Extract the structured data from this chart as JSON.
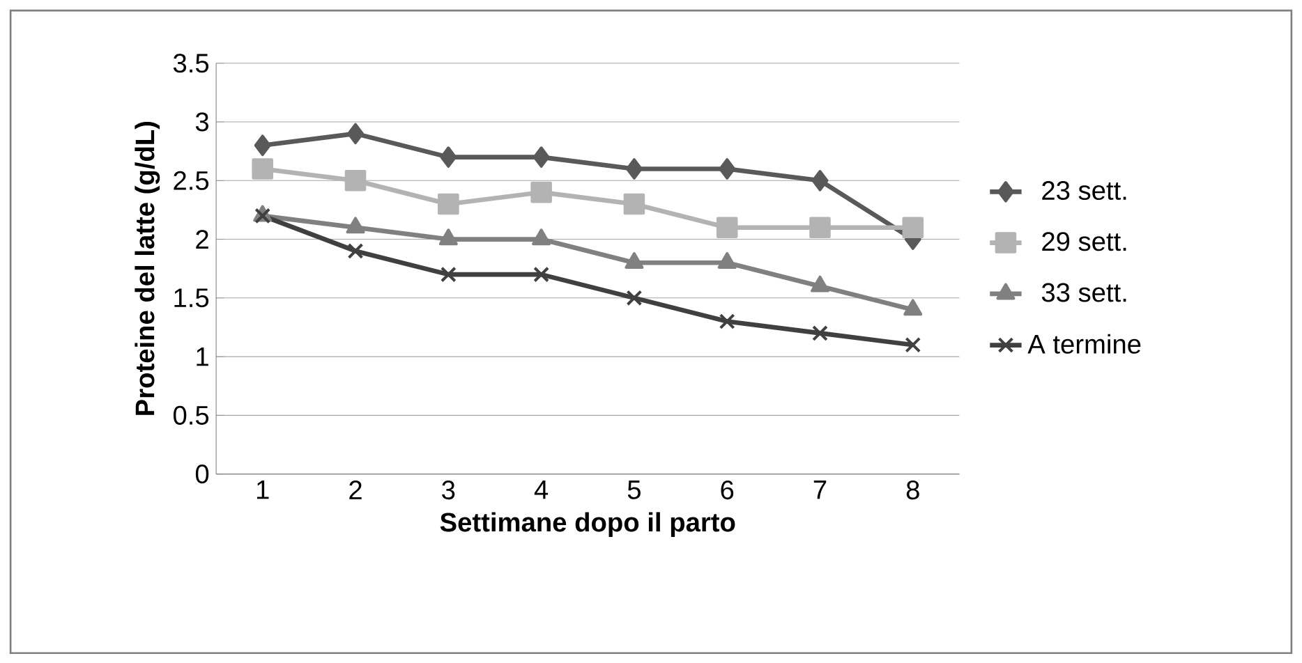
{
  "chart_data": {
    "type": "line",
    "xlabel": "Settimane dopo il parto",
    "ylabel": "Proteine del latte (g/dL)",
    "categories": [
      "1",
      "2",
      "3",
      "4",
      "5",
      "6",
      "7",
      "8"
    ],
    "series": [
      {
        "name": "23 sett.",
        "color": "#595959",
        "marker": "diamond",
        "values": [
          2.8,
          2.9,
          2.7,
          2.7,
          2.6,
          2.6,
          2.5,
          2.0
        ]
      },
      {
        "name": "29 sett.",
        "color": "#b3b3b3",
        "marker": "square",
        "values": [
          2.6,
          2.5,
          2.3,
          2.4,
          2.3,
          2.1,
          2.1,
          2.1
        ]
      },
      {
        "name": "33 sett.",
        "color": "#808080",
        "marker": "triangle",
        "values": [
          2.2,
          2.1,
          2.0,
          2.0,
          1.8,
          1.8,
          1.6,
          1.4
        ]
      },
      {
        "name": "A termine",
        "color": "#404040",
        "marker": "cross",
        "values": [
          2.2,
          1.9,
          1.7,
          1.7,
          1.5,
          1.3,
          1.2,
          1.1
        ]
      }
    ],
    "ylim": [
      0,
      3.5
    ],
    "yticks": [
      0,
      0.5,
      1,
      1.5,
      2,
      2.5,
      3,
      3.5
    ],
    "grid": "y",
    "legend": "right"
  }
}
